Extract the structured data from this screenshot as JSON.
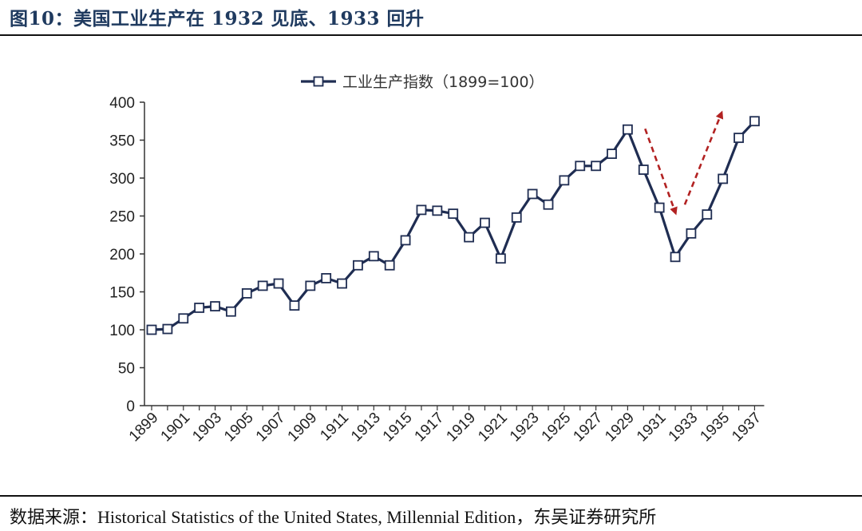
{
  "figure": {
    "title": "图10：美国工业生产在 1932 见底、1933 回升",
    "source": "数据来源：Historical Statistics of the United States, Millennial Edition，东吴证券研究所"
  },
  "colors": {
    "line": "#1f2d52",
    "arrow": "#b22222",
    "title": "#1f3a5f"
  },
  "chart_data": {
    "type": "line",
    "title": "",
    "xlabel": "",
    "ylabel": "",
    "ylim": [
      0,
      400
    ],
    "yticks": [
      0,
      50,
      100,
      150,
      200,
      250,
      300,
      350,
      400
    ],
    "xtick_labels": [
      "1899",
      "1901",
      "1903",
      "1905",
      "1907",
      "1909",
      "1911",
      "1913",
      "1915",
      "1917",
      "1919",
      "1921",
      "1923",
      "1925",
      "1927",
      "1929",
      "1931",
      "1933",
      "1935",
      "1937"
    ],
    "legend": {
      "placement": "top-center"
    },
    "grid": false,
    "x": [
      1899,
      1900,
      1901,
      1902,
      1903,
      1904,
      1905,
      1906,
      1907,
      1908,
      1909,
      1910,
      1911,
      1912,
      1913,
      1914,
      1915,
      1916,
      1917,
      1918,
      1919,
      1920,
      1921,
      1922,
      1923,
      1924,
      1925,
      1926,
      1927,
      1928,
      1929,
      1930,
      1931,
      1932,
      1933,
      1934,
      1935,
      1936,
      1937
    ],
    "series": [
      {
        "name": "工业生产指数（1899=100）",
        "marker": "open-square",
        "values": [
          100,
          101,
          115,
          129,
          131,
          124,
          148,
          158,
          161,
          132,
          158,
          168,
          161,
          185,
          197,
          185,
          218,
          258,
          257,
          253,
          222,
          241,
          194,
          248,
          279,
          265,
          297,
          316,
          316,
          332,
          364,
          311,
          261,
          196,
          227,
          252,
          299,
          353,
          375
        ]
      }
    ],
    "annotations": [
      {
        "type": "arrow",
        "style": "dashed",
        "direction": "down",
        "from_year": 1930.1,
        "from_value": 365,
        "to_year": 1932.0,
        "to_value": 255
      },
      {
        "type": "arrow",
        "style": "dashed",
        "direction": "up",
        "from_year": 1932.6,
        "from_value": 265,
        "to_year": 1934.9,
        "to_value": 385
      }
    ]
  }
}
